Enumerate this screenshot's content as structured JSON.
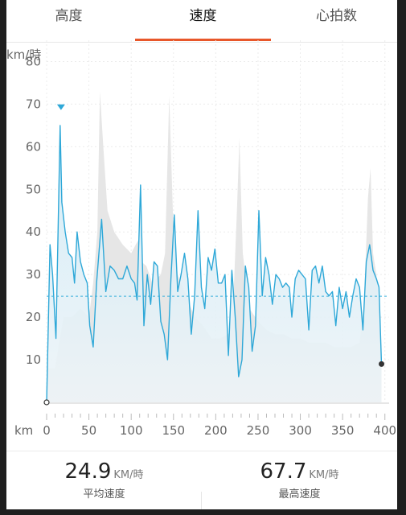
{
  "tabs": [
    {
      "label": "高度"
    },
    {
      "label": "速度"
    },
    {
      "label": "心拍数"
    }
  ],
  "active_tab": 1,
  "colors": {
    "accent": "#e8572a",
    "speed_line": "#2ea8d8",
    "speed_fill": "#cfeaf6",
    "elevation_fill": "#e6e6e6",
    "average_line": "#3cb0dc"
  },
  "chart_data": {
    "type": "line",
    "ylabel": "km/時",
    "xlabel": "km",
    "xlim": [
      0,
      405
    ],
    "ylim": [
      0,
      85
    ],
    "x_ticks": [
      "0",
      "50",
      "100",
      "150",
      "200",
      "250",
      "300",
      "350",
      "400"
    ],
    "y_ticks": [
      "10",
      "20",
      "30",
      "40",
      "50",
      "60",
      "70",
      "80"
    ],
    "grid": true,
    "average_line": 24.9,
    "max_marker": {
      "x": 17,
      "y": 69
    },
    "series": [
      {
        "values_xy": [
          [
            0,
            0
          ],
          [
            4,
            37
          ],
          [
            7,
            30
          ],
          [
            11,
            15
          ],
          [
            16,
            65
          ],
          [
            18,
            47
          ],
          [
            22,
            40
          ],
          [
            26,
            35
          ],
          [
            30,
            34
          ],
          [
            33,
            28
          ],
          [
            36,
            40
          ],
          [
            40,
            33
          ],
          [
            44,
            30
          ],
          [
            48,
            28
          ],
          [
            51,
            18
          ],
          [
            55,
            13
          ],
          [
            59,
            28
          ],
          [
            65,
            43
          ],
          [
            70,
            26
          ],
          [
            75,
            32
          ],
          [
            80,
            31
          ],
          [
            85,
            29
          ],
          [
            90,
            29
          ],
          [
            95,
            32
          ],
          [
            100,
            29
          ],
          [
            104,
            28
          ],
          [
            107,
            24
          ],
          [
            111,
            51
          ],
          [
            115,
            18
          ],
          [
            119,
            30
          ],
          [
            123,
            23
          ],
          [
            127,
            33
          ],
          [
            131,
            32
          ],
          [
            135,
            19
          ],
          [
            139,
            16
          ],
          [
            143,
            10
          ],
          [
            147,
            29
          ],
          [
            151,
            44
          ],
          [
            155,
            26
          ],
          [
            159,
            30
          ],
          [
            163,
            35
          ],
          [
            167,
            29
          ],
          [
            171,
            16
          ],
          [
            175,
            25
          ],
          [
            179,
            45
          ],
          [
            183,
            27
          ],
          [
            187,
            22
          ],
          [
            191,
            34
          ],
          [
            195,
            31
          ],
          [
            199,
            36
          ],
          [
            203,
            28
          ],
          [
            207,
            28
          ],
          [
            211,
            30
          ],
          [
            215,
            11
          ],
          [
            219,
            31
          ],
          [
            223,
            20
          ],
          [
            227,
            6
          ],
          [
            231,
            10
          ],
          [
            235,
            32
          ],
          [
            239,
            27
          ],
          [
            243,
            12
          ],
          [
            247,
            18
          ],
          [
            251,
            45
          ],
          [
            255,
            25
          ],
          [
            259,
            34
          ],
          [
            263,
            30
          ],
          [
            267,
            23
          ],
          [
            271,
            30
          ],
          [
            275,
            29
          ],
          [
            279,
            27
          ],
          [
            283,
            28
          ],
          [
            287,
            27
          ],
          [
            290,
            20
          ],
          [
            294,
            29
          ],
          [
            298,
            31
          ],
          [
            302,
            30
          ],
          [
            306,
            29
          ],
          [
            310,
            17
          ],
          [
            314,
            31
          ],
          [
            318,
            32
          ],
          [
            322,
            28
          ],
          [
            326,
            32
          ],
          [
            330,
            26
          ],
          [
            334,
            25
          ],
          [
            338,
            26
          ],
          [
            342,
            18
          ],
          [
            346,
            27
          ],
          [
            350,
            22
          ],
          [
            354,
            26
          ],
          [
            358,
            20
          ],
          [
            362,
            25
          ],
          [
            366,
            29
          ],
          [
            370,
            27
          ],
          [
            374,
            17
          ],
          [
            378,
            33
          ],
          [
            382,
            37
          ],
          [
            386,
            31
          ],
          [
            390,
            29
          ],
          [
            393,
            27
          ],
          [
            396,
            9
          ]
        ]
      },
      {
        "values_xy": [
          [
            0,
            8
          ],
          [
            10,
            8
          ],
          [
            20,
            20
          ],
          [
            30,
            20
          ],
          [
            40,
            22
          ],
          [
            50,
            20
          ],
          [
            55,
            28
          ],
          [
            60,
            40
          ],
          [
            63,
            73
          ],
          [
            67,
            60
          ],
          [
            72,
            45
          ],
          [
            80,
            40
          ],
          [
            90,
            37
          ],
          [
            100,
            35
          ],
          [
            108,
            38
          ],
          [
            112,
            33
          ],
          [
            118,
            32
          ],
          [
            125,
            28
          ],
          [
            135,
            30
          ],
          [
            140,
            35
          ],
          [
            145,
            72
          ],
          [
            150,
            40
          ],
          [
            155,
            30
          ],
          [
            165,
            25
          ],
          [
            175,
            20
          ],
          [
            185,
            18
          ],
          [
            195,
            15
          ],
          [
            205,
            15
          ],
          [
            215,
            16
          ],
          [
            220,
            20
          ],
          [
            225,
            45
          ],
          [
            228,
            62
          ],
          [
            232,
            35
          ],
          [
            240,
            22
          ],
          [
            250,
            19
          ],
          [
            260,
            17
          ],
          [
            270,
            16
          ],
          [
            280,
            16
          ],
          [
            290,
            15
          ],
          [
            300,
            15
          ],
          [
            310,
            14
          ],
          [
            320,
            14
          ],
          [
            330,
            14
          ],
          [
            340,
            13
          ],
          [
            350,
            13
          ],
          [
            360,
            13
          ],
          [
            370,
            14
          ],
          [
            375,
            22
          ],
          [
            380,
            48
          ],
          [
            383,
            55
          ],
          [
            386,
            35
          ],
          [
            390,
            30
          ],
          [
            396,
            9
          ]
        ]
      }
    ]
  },
  "summary": {
    "average_speed_value": "24.9",
    "average_speed_unit": "KM/時",
    "average_speed_label": "平均速度",
    "max_speed_value": "67.7",
    "max_speed_unit": "KM/時",
    "max_speed_label": "最高速度"
  }
}
